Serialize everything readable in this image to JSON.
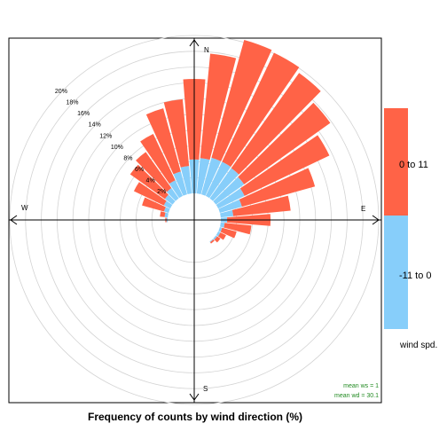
{
  "chart_data": {
    "type": "polar-bar",
    "title": "Frequency of counts by wind direction (%)",
    "directions": [
      {
        "label": "N",
        "angle": 0
      },
      {
        "label": "E",
        "angle": 90
      },
      {
        "label": "S",
        "angle": 180
      },
      {
        "label": "W",
        "angle": 270
      }
    ],
    "rlim": [
      0,
      20
    ],
    "radial_ticks": [
      2,
      4,
      6,
      8,
      10,
      12,
      14,
      16,
      18,
      20
    ],
    "radial_tick_labels": [
      "2%",
      "4%",
      "6%",
      "8%",
      "10%",
      "12%",
      "14%",
      "16%",
      "18%",
      "20%"
    ],
    "sector_width_deg": 10,
    "sector_centers_deg": [
      270,
      280,
      290,
      300,
      310,
      320,
      330,
      340,
      350,
      0,
      10,
      20,
      30,
      40,
      50,
      60,
      70,
      80,
      90,
      100,
      110,
      120,
      130,
      140
    ],
    "series": [
      {
        "name": "-11 to 0",
        "color": "#87CEFA",
        "values": [
          0.15,
          0.4,
          0.6,
          0.9,
          1.2,
          1.6,
          2.2,
          3.0,
          3.5,
          4.3,
          4.5,
          4.8,
          4.8,
          4.7,
          4.4,
          3.7,
          2.9,
          1.6,
          0.8,
          0.5,
          0.3,
          0.3,
          0.2,
          0.1
        ]
      },
      {
        "name": "0 to 11",
        "color": "#FF6347",
        "values": [
          0.15,
          0.6,
          2.9,
          4.2,
          5.4,
          5.6,
          6.5,
          8.3,
          8.5,
          10.2,
          13.3,
          15.5,
          15.3,
          14.8,
          13.4,
          11.9,
          9.6,
          7.3,
          5.5,
          3.4,
          1.9,
          0.8,
          0.5,
          0.2
        ]
      }
    ],
    "legend": {
      "title": "wind spd.",
      "placement": "right"
    },
    "annotations": [
      "mean ws = 1",
      "mean wd = 30.1"
    ],
    "grid": true
  },
  "legend_labels": {
    "top": "0 to 11",
    "bottom": "-11 to 0"
  }
}
